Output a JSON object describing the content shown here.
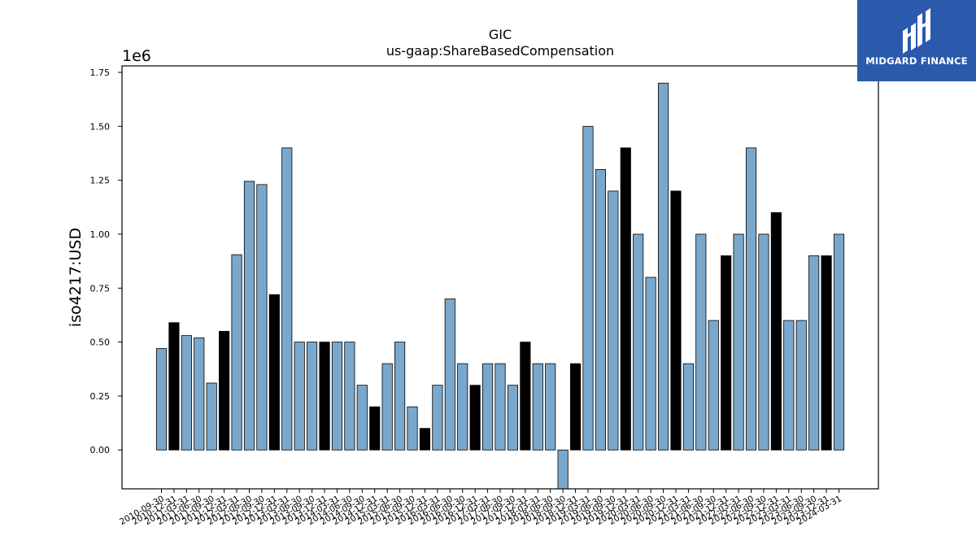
{
  "brand": {
    "name": "MIDGARD FINANCE",
    "logo_icon": "midgard-logo-icon",
    "background": "#2b5aad"
  },
  "chart_data": {
    "type": "bar",
    "title": "GIC",
    "subtitle": "us-gaap:ShareBasedCompensation",
    "ylabel": "iso4217:USD",
    "xlabel": "",
    "y_scale_label": "1e6",
    "ylim": [
      -0.18,
      1.78
    ],
    "yticks": [
      0.0,
      0.25,
      0.5,
      0.75,
      1.0,
      1.25,
      1.5,
      1.75
    ],
    "ytick_labels": [
      "0.00",
      "0.25",
      "0.50",
      "0.75",
      "1.00",
      "1.25",
      "1.50",
      "1.75"
    ],
    "grid": false,
    "colors": {
      "blue": "#7aa8cc",
      "black": "#000000"
    },
    "categories": [
      "2010-09-30",
      "2010-12-31",
      "2011-03-31",
      "2011-06-30",
      "2011-09-30",
      "2011-12-31",
      "2012-03-31",
      "2012-06-30",
      "2012-09-30",
      "2012-12-31",
      "2013-03-31",
      "2013-06-30",
      "2013-09-30",
      "2013-12-31",
      "2014-03-31",
      "2014-06-30",
      "2014-09-30",
      "2014-12-31",
      "2015-03-31",
      "2015-06-30",
      "2015-09-30",
      "2015-12-31",
      "2016-03-31",
      "2016-06-30",
      "2016-09-30",
      "2016-12-31",
      "2017-03-31",
      "2017-06-30",
      "2017-09-30",
      "2017-12-31",
      "2018-03-31",
      "2018-06-30",
      "2018-09-30",
      "2018-12-31",
      "2019-03-31",
      "2019-06-30",
      "2019-09-30",
      "2019-12-31",
      "2020-03-31",
      "2020-06-30",
      "2020-09-30",
      "2020-12-31",
      "2021-03-31",
      "2021-06-30",
      "2021-09-30",
      "2021-12-31",
      "2022-03-31",
      "2022-06-30",
      "2022-09-30",
      "2022-12-31",
      "2023-03-31",
      "2023-06-30",
      "2023-09-30",
      "2023-12-31",
      "2024-03-31"
    ],
    "values": [
      0.47,
      0.59,
      0.53,
      0.52,
      0.31,
      0.55,
      0.905,
      1.245,
      1.23,
      0.72,
      1.4,
      0.5,
      0.5,
      0.5,
      0.5,
      0.5,
      0.3,
      0.2,
      0.4,
      0.5,
      0.2,
      0.1,
      0.3,
      0.7,
      0.4,
      0.3,
      0.4,
      0.4,
      0.3,
      0.5,
      0.4,
      0.4,
      -0.19,
      0.4,
      1.5,
      1.3,
      1.2,
      1.4,
      1.0,
      0.8,
      1.7,
      1.2,
      0.4,
      1.0,
      0.6,
      0.9,
      1.0,
      1.4,
      1.0,
      1.1,
      0.6,
      0.6,
      0.9,
      0.9,
      1.0
    ],
    "bar_colors": [
      "blue",
      "black",
      "blue",
      "blue",
      "blue",
      "black",
      "blue",
      "blue",
      "blue",
      "black",
      "blue",
      "blue",
      "blue",
      "black",
      "blue",
      "blue",
      "blue",
      "black",
      "blue",
      "blue",
      "blue",
      "black",
      "blue",
      "blue",
      "blue",
      "black",
      "blue",
      "blue",
      "blue",
      "black",
      "blue",
      "blue",
      "blue",
      "black",
      "blue",
      "blue",
      "blue",
      "black",
      "blue",
      "blue",
      "blue",
      "black",
      "blue",
      "blue",
      "blue",
      "black",
      "blue",
      "blue",
      "blue",
      "black",
      "blue",
      "blue",
      "blue",
      "black",
      "blue"
    ]
  }
}
